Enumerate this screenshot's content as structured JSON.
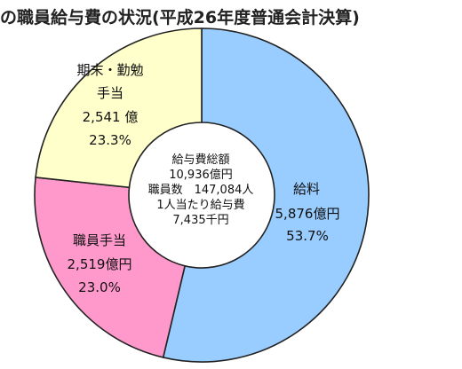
{
  "title": "の職員給与費の状況(平成26年度普通会計決算)",
  "chart_data": {
    "type": "pie",
    "style": "donut",
    "title": "の職員給与費の状況(平成26年度普通会計決算)",
    "slices": [
      {
        "name": "給料",
        "amount": "5,876億円",
        "percent": "53.7%",
        "value": 53.7,
        "color": "#99CCFF"
      },
      {
        "name": "職員手当",
        "amount": "2,519億円",
        "percent": "23.0%",
        "value": 23.0,
        "color": "#FF99CC"
      },
      {
        "name": "期末・勤勉手当",
        "name_lines": [
          "期末・勤勉",
          "手当"
        ],
        "amount": "2,541 億",
        "percent": "23.3%",
        "value": 23.3,
        "color": "#FFFFCC"
      }
    ],
    "center_text": {
      "total_label": "給与費総額",
      "total_value": "10,936億円",
      "staff_count": "職員数　147,084人",
      "per_person_label": "1人当たり給与費",
      "per_person_value": "7,435千円"
    }
  }
}
